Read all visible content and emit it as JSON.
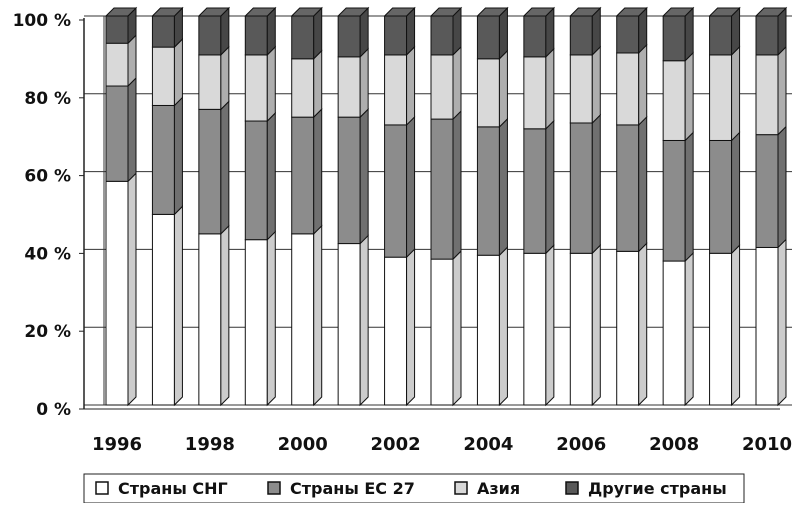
{
  "chart_data": {
    "type": "bar",
    "stacked": true,
    "percent": true,
    "style": "3d",
    "categories": [
      "1996",
      "1997",
      "1998",
      "1999",
      "2000",
      "2001",
      "2002",
      "2003",
      "2004",
      "2005",
      "2006",
      "2007",
      "2008",
      "2009",
      "2010"
    ],
    "x_tick_labels": [
      "1996",
      "1998",
      "2000",
      "2002",
      "2004",
      "2006",
      "2008",
      "2010"
    ],
    "y_tick_labels": [
      "0 %",
      "20 %",
      "40 %",
      "60 %",
      "80 %",
      "100 %"
    ],
    "ylim": [
      0,
      100
    ],
    "grid": true,
    "legend_position": "bottom",
    "series": [
      {
        "name": "Страны СНГ",
        "color": "#ffffff",
        "values": [
          57.5,
          49,
          44,
          42.5,
          44,
          41.5,
          38,
          37.5,
          38.5,
          39,
          39,
          39.5,
          37,
          39,
          40.5
        ]
      },
      {
        "name": "Страны ЕС 27",
        "color": "#8c8c8c",
        "values": [
          24.5,
          28,
          32,
          30.5,
          30,
          32.5,
          34,
          36,
          33,
          32,
          33.5,
          32.5,
          31,
          29,
          29
        ]
      },
      {
        "name": "Азия",
        "color": "#d9d9d9",
        "values": [
          11,
          15,
          14,
          17,
          15,
          15.5,
          18,
          16.5,
          17.5,
          18.5,
          17.5,
          18.5,
          20.5,
          22,
          20.5
        ]
      },
      {
        "name": "Другие страны",
        "color": "#595959",
        "values": [
          7,
          8,
          10,
          10,
          11,
          10.5,
          10,
          10,
          11,
          10.5,
          10,
          9.5,
          11.5,
          10,
          10
        ]
      }
    ]
  }
}
